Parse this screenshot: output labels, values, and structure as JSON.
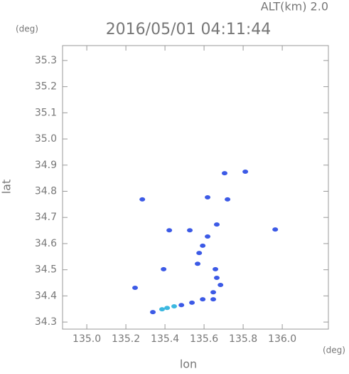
{
  "chart_data": {
    "type": "scatter",
    "title": "2016/05/01 04:11:44",
    "subtitle": "ALT(km) 2.0",
    "x_label": "lon",
    "y_label": "lat",
    "x_unit": "(deg)",
    "y_unit": "(deg)",
    "xlim": [
      134.876,
      136.236
    ],
    "ylim": [
      34.273,
      35.357
    ],
    "xticks": [
      {
        "value": 135,
        "label": "135.0"
      },
      135.2,
      135.4,
      135.6,
      135.8,
      {
        "value": 136,
        "label": "136.0"
      }
    ],
    "yticks": [
      35.3,
      35.2,
      35.1,
      {
        "value": 35,
        "label": "35.0"
      },
      34.9,
      34.8,
      34.7,
      34.6,
      34.5,
      34.4,
      34.3
    ],
    "grid": false,
    "series": [
      {
        "color": "#3c5ae6",
        "x": [
          135.705,
          135.811,
          135.284,
          135.72,
          135.618,
          135.422,
          135.527,
          135.618,
          135.665,
          135.964,
          135.575,
          135.593,
          135.567,
          135.393,
          135.658,
          135.665,
          135.684,
          135.647,
          135.247,
          135.593,
          135.538,
          135.484,
          135.338,
          135.647
        ],
        "values": [
          34.869,
          34.875,
          34.769,
          34.769,
          34.777,
          34.651,
          34.651,
          34.627,
          34.673,
          34.654,
          34.564,
          34.592,
          34.523,
          34.502,
          34.502,
          34.469,
          34.442,
          34.414,
          34.431,
          34.387,
          34.374,
          34.365,
          34.338,
          34.387
        ]
      },
      {
        "color": "#3cb8e0",
        "x": [
          135.411,
          135.447,
          135.385
        ],
        "values": [
          34.354,
          34.36,
          34.349
        ]
      }
    ]
  }
}
